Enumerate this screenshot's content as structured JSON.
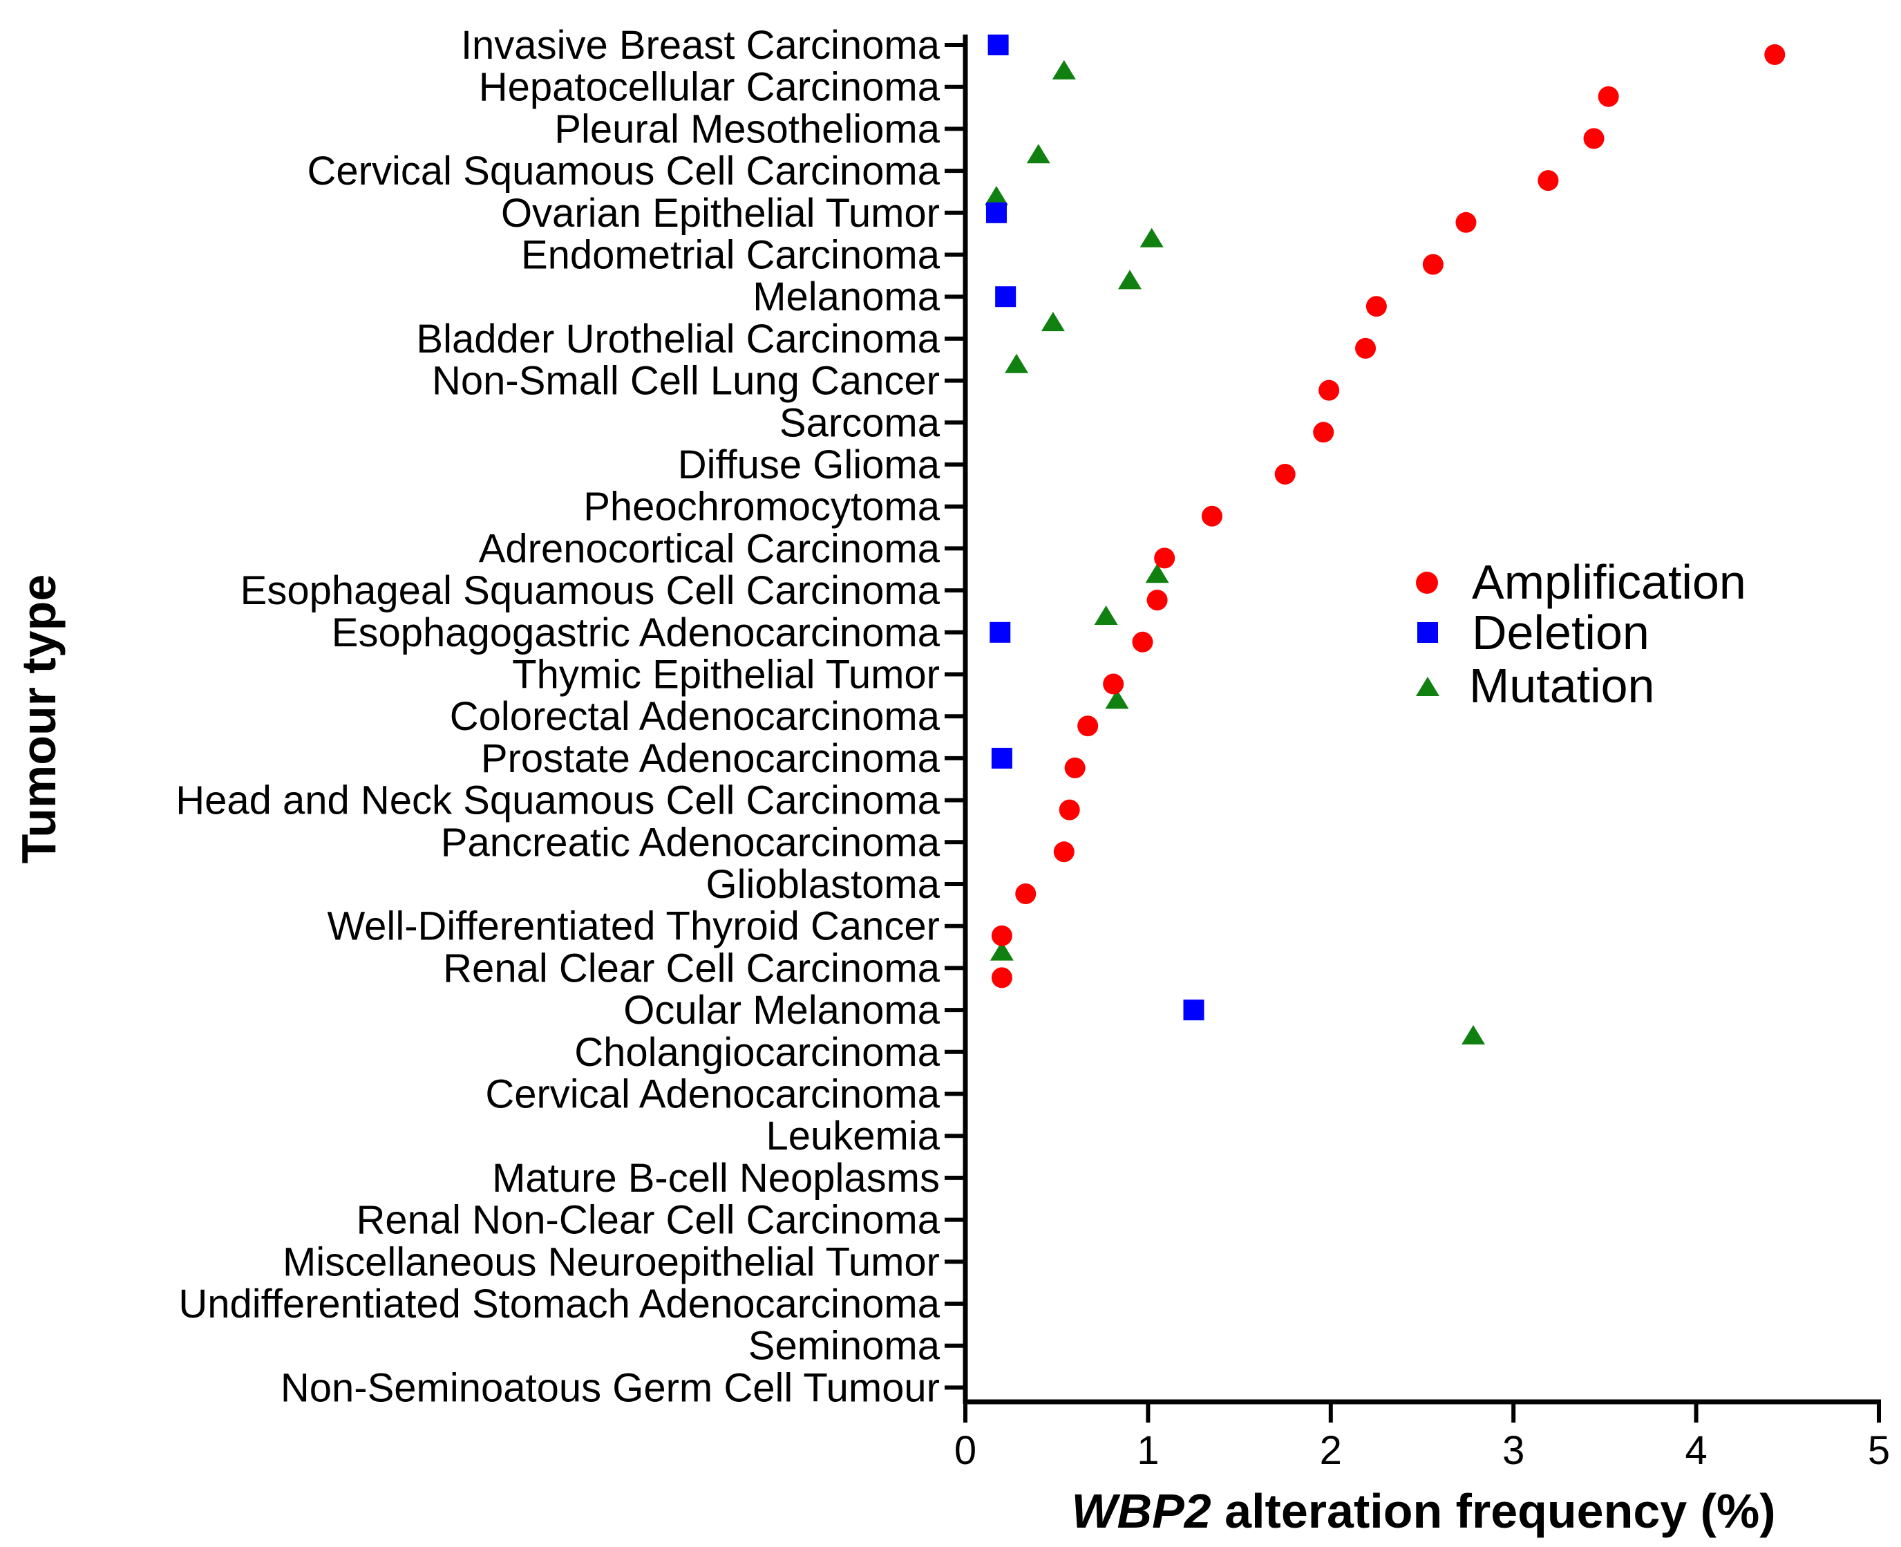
{
  "chart_data": {
    "type": "scatter",
    "title": "",
    "xlabel": "alteration frequency (%)",
    "xlabel_gene": "WBP2",
    "ylabel": "Tumour type",
    "xlim": [
      0,
      5
    ],
    "x_ticks": [
      "0",
      "1",
      "2",
      "3",
      "4",
      "5"
    ],
    "legend_position": "center-right",
    "colors": {
      "Amplification": "#ff0000",
      "Deletion": "#0000ff",
      "Mutation": "#108010"
    },
    "markers": {
      "Amplification": "circle",
      "Deletion": "square",
      "Mutation": "triangle"
    },
    "categories": [
      "Invasive Breast Carcinoma",
      "Hepatocellular Carcinoma",
      "Pleural Mesothelioma",
      "Cervical Squamous Cell Carcinoma",
      "Ovarian Epithelial Tumor",
      "Endometrial Carcinoma",
      "Melanoma",
      "Bladder Urothelial Carcinoma",
      "Non-Small Cell Lung Cancer",
      "Sarcoma",
      "Diffuse Glioma",
      "Pheochromocytoma",
      "Adrenocortical Carcinoma",
      "Esophageal Squamous Cell Carcinoma",
      "Esophagogastric Adenocarcinoma",
      "Thymic Epithelial Tumor",
      "Colorectal Adenocarcinoma",
      "Prostate Adenocarcinoma",
      "Head and Neck Squamous Cell Carcinoma",
      "Pancreatic Adenocarcinoma",
      "Glioblastoma",
      "Well-Differentiated Thyroid Cancer",
      "Renal Clear Cell Carcinoma",
      "Ocular Melanoma",
      "Cholangiocarcinoma",
      "Cervical Adenocarcinoma",
      "Leukemia",
      "Mature B-cell Neoplasms",
      "Renal Non-Clear Cell Carcinoma",
      "Miscellaneous Neuroepithelial Tumor",
      "Undifferentiated Stomach Adenocarcinoma",
      "Seminoma",
      "Non-Seminoatous Germ Cell Tumour"
    ],
    "series": [
      {
        "name": "Amplification",
        "values": [
          4.43,
          3.52,
          3.44,
          3.19,
          2.74,
          2.56,
          2.25,
          2.19,
          1.99,
          1.96,
          1.75,
          1.35,
          1.09,
          1.05,
          0.97,
          0.81,
          0.67,
          0.6,
          0.57,
          0.54,
          0.33,
          0.2,
          0.2,
          null,
          null,
          null,
          null,
          null,
          null,
          null,
          null,
          null,
          null
        ]
      },
      {
        "name": "Deletion",
        "values": [
          0.18,
          null,
          null,
          null,
          0.17,
          null,
          0.22,
          null,
          null,
          null,
          null,
          null,
          null,
          null,
          0.19,
          null,
          null,
          0.2,
          null,
          null,
          null,
          null,
          null,
          1.25,
          null,
          null,
          null,
          null,
          null,
          null,
          null,
          null,
          null
        ]
      },
      {
        "name": "Mutation",
        "values": [
          null,
          0.54,
          null,
          0.4,
          0.17,
          1.02,
          0.9,
          0.48,
          0.28,
          null,
          null,
          null,
          null,
          1.05,
          0.77,
          null,
          0.83,
          null,
          null,
          null,
          null,
          null,
          0.2,
          null,
          2.78,
          null,
          null,
          null,
          null,
          null,
          null,
          null,
          null
        ]
      }
    ]
  }
}
